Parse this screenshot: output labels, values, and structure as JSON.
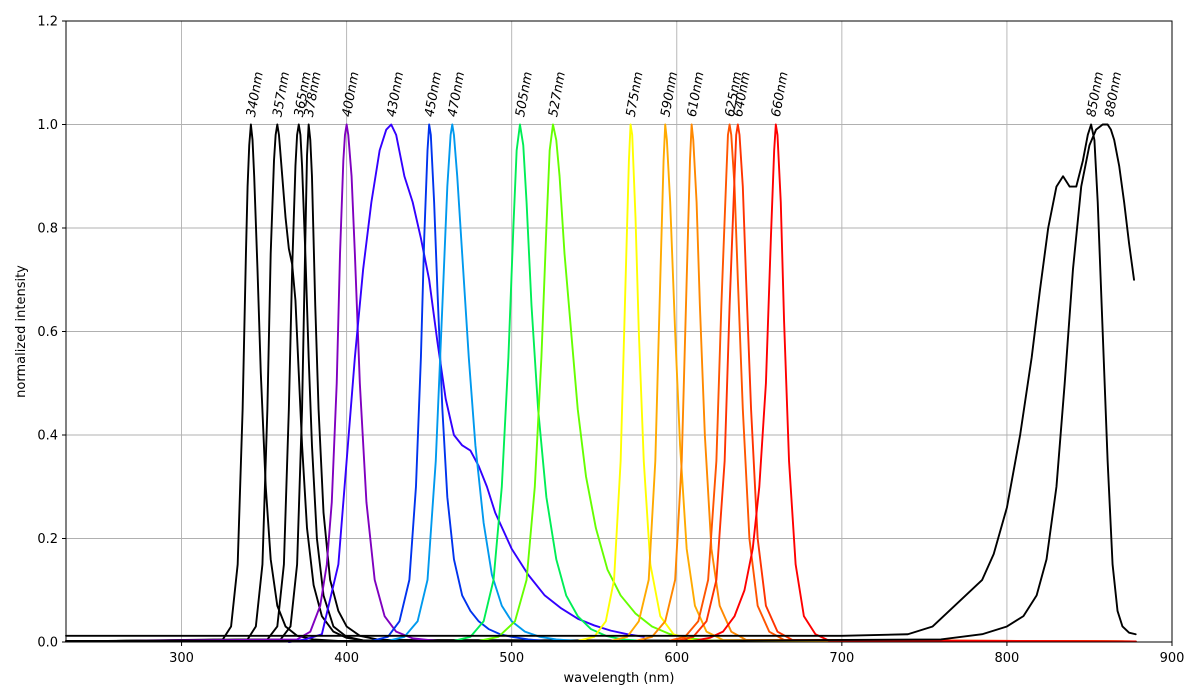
{
  "chart_data": {
    "type": "line",
    "title": "",
    "xlabel": "wavelength (nm)",
    "ylabel": "normalized intensity",
    "xlim": [
      230,
      900
    ],
    "ylim": [
      0.0,
      1.2
    ],
    "xticks": [
      300,
      400,
      500,
      600,
      700,
      800,
      900
    ],
    "xtick_labels": [
      "300",
      "400",
      "500",
      "600",
      "700",
      "800",
      "900"
    ],
    "yticks": [
      0.0,
      0.2,
      0.4,
      0.6,
      0.8,
      1.0,
      1.2
    ],
    "ytick_labels": [
      "0.0",
      "0.2",
      "0.4",
      "0.6",
      "0.8",
      "1.0",
      "1.2"
    ],
    "grid": true,
    "series": [
      {
        "name": "340nm",
        "color": "#000000",
        "peak": 342,
        "x": [
          325,
          330,
          334,
          337,
          339,
          340,
          341,
          342,
          343,
          344,
          346,
          348,
          351,
          354,
          358,
          363,
          370,
          380,
          395
        ],
        "y": [
          0.005,
          0.03,
          0.15,
          0.45,
          0.75,
          0.88,
          0.96,
          1.0,
          0.97,
          0.9,
          0.72,
          0.52,
          0.3,
          0.16,
          0.07,
          0.03,
          0.012,
          0.005,
          0.002
        ]
      },
      {
        "name": "357nm",
        "color": "#000000",
        "peak": 358,
        "x": [
          340,
          345,
          349,
          352,
          354,
          356,
          357,
          358,
          359,
          361,
          363,
          365,
          367,
          369,
          371,
          373,
          376,
          380,
          385,
          392,
          400,
          410
        ],
        "y": [
          0.005,
          0.03,
          0.15,
          0.45,
          0.75,
          0.93,
          0.98,
          1.0,
          0.98,
          0.9,
          0.82,
          0.76,
          0.73,
          0.66,
          0.52,
          0.38,
          0.22,
          0.11,
          0.05,
          0.02,
          0.008,
          0.003
        ]
      },
      {
        "name": "365nm",
        "color": "#000000",
        "peak": 371,
        "x": [
          352,
          358,
          362,
          365,
          367,
          369,
          370,
          371,
          372,
          373,
          375,
          377,
          379,
          382,
          386,
          392,
          400,
          410
        ],
        "y": [
          0.005,
          0.03,
          0.15,
          0.45,
          0.72,
          0.92,
          0.98,
          1.0,
          0.98,
          0.92,
          0.75,
          0.55,
          0.38,
          0.2,
          0.09,
          0.03,
          0.01,
          0.003
        ]
      },
      {
        "name": "378nm",
        "color": "#000000",
        "peak": 377,
        "x": [
          360,
          366,
          370,
          373,
          375,
          376,
          377,
          378,
          379,
          381,
          383,
          386,
          390,
          395,
          400,
          408,
          420
        ],
        "y": [
          0.005,
          0.03,
          0.15,
          0.45,
          0.78,
          0.94,
          1.0,
          0.97,
          0.9,
          0.65,
          0.45,
          0.25,
          0.12,
          0.06,
          0.03,
          0.012,
          0.004
        ]
      },
      {
        "name": "400nm",
        "color": "#7f00bf",
        "peak": 400,
        "x": [
          370,
          378,
          384,
          388,
          391,
          394,
          396,
          398,
          399,
          400,
          401,
          403,
          405,
          408,
          412,
          417,
          423,
          430,
          440,
          455
        ],
        "y": [
          0.005,
          0.02,
          0.07,
          0.15,
          0.27,
          0.5,
          0.75,
          0.93,
          0.98,
          1.0,
          0.98,
          0.9,
          0.75,
          0.5,
          0.27,
          0.12,
          0.05,
          0.02,
          0.007,
          0.002
        ]
      },
      {
        "name": "430nm",
        "color": "#3300ff",
        "peak": 427,
        "x": [
          365,
          375,
          385,
          395,
          400,
          405,
          410,
          415,
          420,
          424,
          427,
          430,
          435,
          440,
          445,
          450,
          455,
          460,
          465,
          470,
          475,
          480,
          485,
          490,
          500,
          510,
          520,
          530,
          540,
          550,
          560,
          570,
          580
        ],
        "y": [
          0.0,
          0.005,
          0.015,
          0.15,
          0.35,
          0.55,
          0.72,
          0.85,
          0.95,
          0.99,
          1.0,
          0.98,
          0.9,
          0.85,
          0.78,
          0.7,
          0.58,
          0.47,
          0.4,
          0.38,
          0.37,
          0.34,
          0.3,
          0.25,
          0.18,
          0.13,
          0.09,
          0.065,
          0.045,
          0.032,
          0.022,
          0.015,
          0.01
        ]
      },
      {
        "name": "450nm",
        "color": "#0033ee",
        "peak": 450,
        "x": [
          415,
          425,
          432,
          438,
          442,
          445,
          447,
          449,
          450,
          451,
          453,
          455,
          458,
          461,
          465,
          470,
          475,
          480,
          486,
          493,
          500,
          510,
          520
        ],
        "y": [
          0.002,
          0.01,
          0.04,
          0.12,
          0.3,
          0.55,
          0.78,
          0.95,
          1.0,
          0.98,
          0.85,
          0.68,
          0.45,
          0.28,
          0.16,
          0.09,
          0.06,
          0.04,
          0.025,
          0.015,
          0.01,
          0.005,
          0.002
        ]
      },
      {
        "name": "470nm",
        "color": "#0099ee",
        "peak": 464,
        "x": [
          425,
          435,
          443,
          449,
          454,
          458,
          461,
          463,
          464,
          465,
          467,
          470,
          474,
          478,
          483,
          488,
          494,
          500,
          508,
          517,
          527,
          540,
          555
        ],
        "y": [
          0.002,
          0.01,
          0.04,
          0.12,
          0.35,
          0.65,
          0.88,
          0.98,
          1.0,
          0.98,
          0.9,
          0.75,
          0.55,
          0.38,
          0.23,
          0.13,
          0.07,
          0.04,
          0.02,
          0.01,
          0.005,
          0.002,
          0.001
        ]
      },
      {
        "name": "505nm",
        "color": "#00ee55",
        "peak": 505,
        "x": [
          465,
          475,
          483,
          489,
          494,
          498,
          501,
          503,
          505,
          507,
          509,
          512,
          516,
          521,
          527,
          533,
          540,
          548,
          557,
          567,
          580
        ],
        "y": [
          0.002,
          0.01,
          0.04,
          0.12,
          0.3,
          0.55,
          0.8,
          0.95,
          1.0,
          0.96,
          0.85,
          0.65,
          0.45,
          0.28,
          0.16,
          0.09,
          0.05,
          0.025,
          0.012,
          0.005,
          0.002
        ]
      },
      {
        "name": "527nm",
        "color": "#66ff00",
        "peak": 525,
        "x": [
          480,
          492,
          502,
          509,
          514,
          518,
          521,
          523,
          525,
          527,
          529,
          532,
          536,
          540,
          545,
          551,
          558,
          566,
          575,
          585,
          596,
          608,
          620
        ],
        "y": [
          0.002,
          0.01,
          0.04,
          0.12,
          0.3,
          0.55,
          0.8,
          0.95,
          1.0,
          0.97,
          0.9,
          0.75,
          0.6,
          0.45,
          0.32,
          0.22,
          0.14,
          0.09,
          0.055,
          0.03,
          0.015,
          0.007,
          0.003
        ]
      },
      {
        "name": "575nm",
        "color": "#ffff00",
        "peak": 572,
        "x": [
          540,
          550,
          557,
          562,
          566,
          569,
          571,
          572,
          573,
          575,
          577,
          580,
          584,
          590,
          598,
          610
        ],
        "y": [
          0.002,
          0.01,
          0.04,
          0.12,
          0.35,
          0.7,
          0.93,
          1.0,
          0.98,
          0.82,
          0.6,
          0.35,
          0.15,
          0.05,
          0.015,
          0.003
        ]
      },
      {
        "name": "590nm",
        "color": "#ffaa00",
        "peak": 593,
        "x": [
          560,
          570,
          577,
          583,
          587,
          590,
          592,
          593,
          594,
          596,
          599,
          602,
          606,
          611,
          618,
          628
        ],
        "y": [
          0.002,
          0.01,
          0.04,
          0.12,
          0.35,
          0.7,
          0.93,
          1.0,
          0.97,
          0.85,
          0.6,
          0.38,
          0.18,
          0.07,
          0.02,
          0.004
        ]
      },
      {
        "name": "610nm",
        "color": "#ff8800",
        "peak": 609,
        "x": [
          575,
          585,
          593,
          599,
          603,
          606,
          608,
          609,
          610,
          612,
          614,
          617,
          621,
          626,
          633,
          642
        ],
        "y": [
          0.002,
          0.01,
          0.04,
          0.12,
          0.35,
          0.7,
          0.93,
          1.0,
          0.97,
          0.85,
          0.65,
          0.4,
          0.18,
          0.07,
          0.02,
          0.004
        ]
      },
      {
        "name": "625nm",
        "color": "#ff5500",
        "peak": 632,
        "x": [
          595,
          605,
          613,
          619,
          624,
          627,
          630,
          631,
          632,
          633,
          635,
          637,
          640,
          644,
          649,
          656,
          665
        ],
        "y": [
          0.002,
          0.01,
          0.04,
          0.12,
          0.35,
          0.65,
          0.9,
          0.98,
          1.0,
          0.98,
          0.88,
          0.7,
          0.45,
          0.2,
          0.07,
          0.02,
          0.004
        ]
      },
      {
        "name": "640nm",
        "color": "#ff3300",
        "peak": 637,
        "x": [
          600,
          610,
          618,
          624,
          629,
          632,
          635,
          636,
          637,
          638,
          640,
          642,
          645,
          649,
          654,
          661,
          670
        ],
        "y": [
          0.002,
          0.01,
          0.04,
          0.12,
          0.35,
          0.65,
          0.9,
          0.98,
          1.0,
          0.98,
          0.88,
          0.7,
          0.45,
          0.2,
          0.07,
          0.02,
          0.004
        ]
      },
      {
        "name": "660nm",
        "color": "#ff0000",
        "peak": 660,
        "x": [
          610,
          620,
          628,
          635,
          641,
          646,
          650,
          654,
          657,
          659,
          660,
          661,
          663,
          665,
          668,
          672,
          677,
          684,
          692
        ],
        "y": [
          0.002,
          0.008,
          0.02,
          0.05,
          0.1,
          0.18,
          0.3,
          0.5,
          0.78,
          0.95,
          1.0,
          0.98,
          0.85,
          0.62,
          0.35,
          0.15,
          0.05,
          0.015,
          0.003
        ]
      },
      {
        "name": "850nm",
        "color": "#000000",
        "peak": 851,
        "x": [
          230,
          300,
          400,
          500,
          600,
          700,
          740,
          755,
          765,
          775,
          785,
          792,
          800,
          808,
          815,
          820,
          825,
          830,
          834,
          838,
          842,
          846,
          849,
          851,
          853,
          855,
          858,
          861,
          864,
          867,
          870,
          874,
          878
        ],
        "y": [
          0.012,
          0.012,
          0.012,
          0.012,
          0.012,
          0.012,
          0.015,
          0.03,
          0.06,
          0.09,
          0.12,
          0.17,
          0.26,
          0.4,
          0.55,
          0.68,
          0.8,
          0.88,
          0.9,
          0.88,
          0.88,
          0.93,
          0.98,
          1.0,
          0.97,
          0.85,
          0.6,
          0.35,
          0.15,
          0.06,
          0.03,
          0.018,
          0.015
        ]
      },
      {
        "name": "880nm",
        "color": "#000000",
        "peak": 862,
        "x": [
          230,
          400,
          600,
          760,
          785,
          800,
          810,
          818,
          824,
          830,
          835,
          840,
          845,
          850,
          854,
          858,
          861,
          863,
          865,
          868,
          871,
          874,
          877
        ],
        "y": [
          0.002,
          0.002,
          0.002,
          0.005,
          0.015,
          0.03,
          0.05,
          0.09,
          0.16,
          0.3,
          0.5,
          0.72,
          0.88,
          0.96,
          0.99,
          1.0,
          1.0,
          0.99,
          0.97,
          0.92,
          0.85,
          0.77,
          0.7
        ]
      }
    ]
  }
}
